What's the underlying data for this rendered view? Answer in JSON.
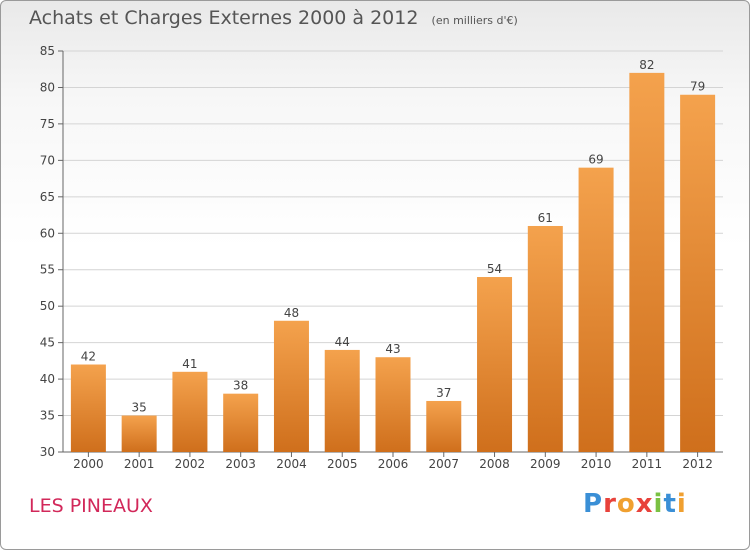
{
  "header": {
    "title": "Achats et Charges Externes 2000 à 2012",
    "unit": "(en milliers d'€)"
  },
  "footer": {
    "commune": "LES PINEAUX",
    "logo_text": "Proxiti"
  },
  "colors": {
    "bar_top": "#f4a24d",
    "bar_bottom": "#cf6f1c",
    "commune": "#d2285a"
  },
  "chart_data": {
    "type": "bar",
    "title": "Achats et Charges Externes 2000 à 2012",
    "subtitle": "(en milliers d'€)",
    "categories": [
      "2000",
      "2001",
      "2002",
      "2003",
      "2004",
      "2005",
      "2006",
      "2007",
      "2008",
      "2009",
      "2010",
      "2011",
      "2012"
    ],
    "values": [
      42,
      35,
      41,
      38,
      48,
      44,
      43,
      37,
      54,
      61,
      69,
      82,
      79
    ],
    "ylim": [
      30,
      85
    ],
    "yticks": [
      30,
      35,
      40,
      45,
      50,
      55,
      60,
      65,
      70,
      75,
      80,
      85
    ],
    "grid": true
  }
}
